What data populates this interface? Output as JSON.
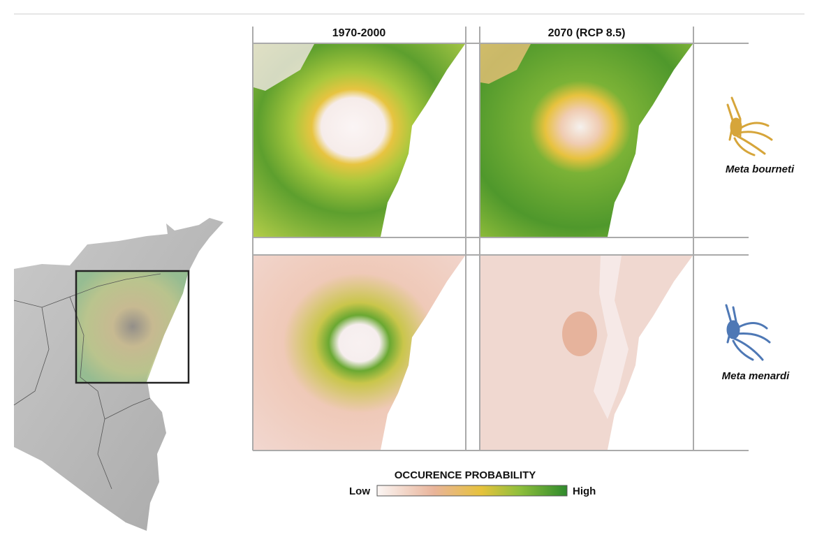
{
  "columns": [
    "1970-2000",
    "2070 (RCP 8.5)"
  ],
  "species": [
    "Meta bourneti",
    "Meta menardi"
  ],
  "legend": {
    "title": "OCCURENCE PROBABILITY",
    "low": "Low",
    "high": "High"
  }
}
